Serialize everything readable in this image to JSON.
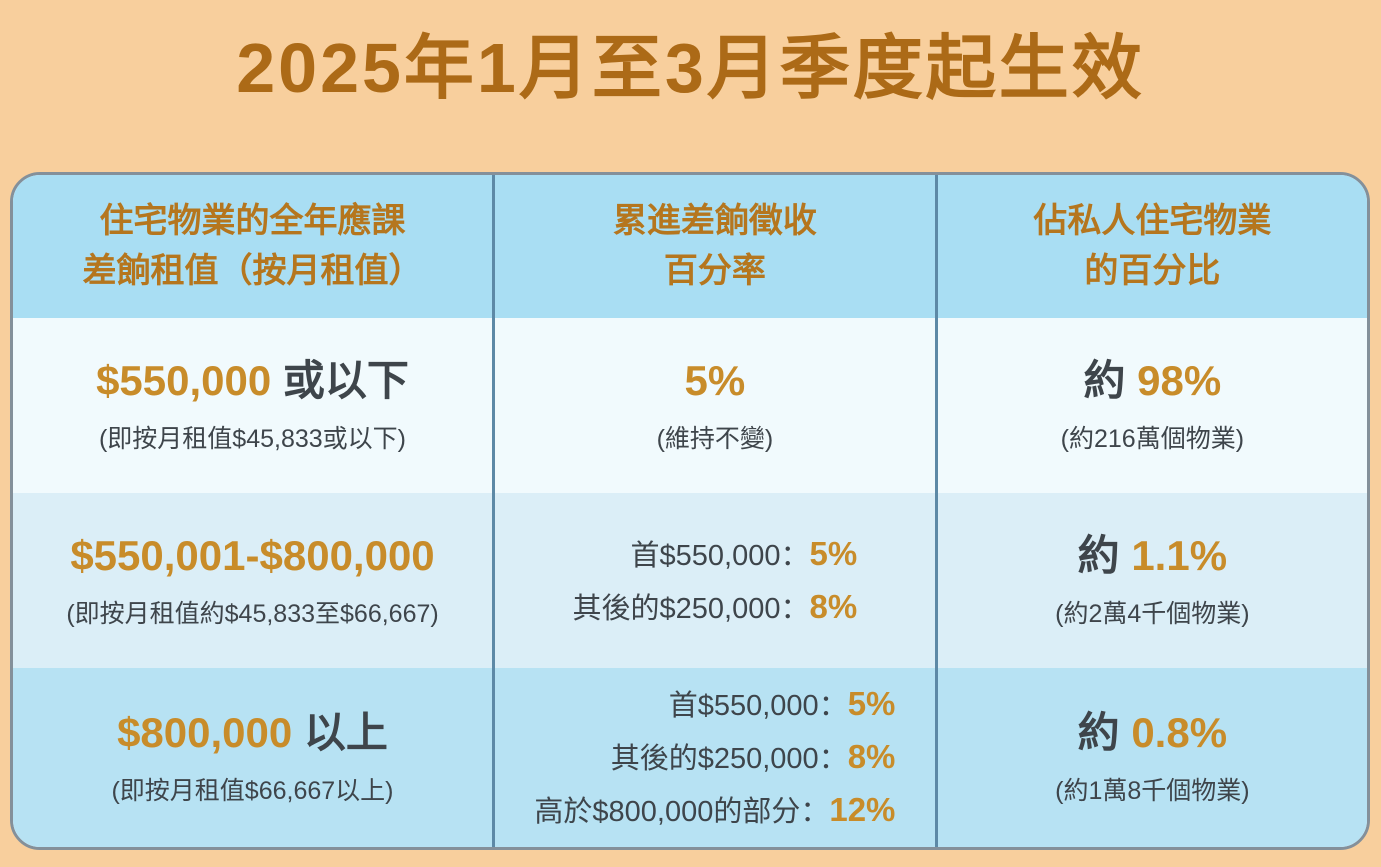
{
  "title": "2025年1月至3月季度起生效",
  "colors": {
    "page_bg": "#f8cf9d",
    "title_text": "#ac6a17",
    "header_text": "#b5761e",
    "highlight_orange": "#c88c2a",
    "body_text": "#3e454b",
    "header_row_bg": "#a9def3",
    "row1_bg": "#f1fafd",
    "row2_bg": "#dbeef7",
    "row3_bg": "#b7e2f3",
    "table_border": "#84909a",
    "column_divider": "#5d89a6"
  },
  "table": {
    "headers": [
      {
        "line1": "住宅物業的全年應課",
        "line2": "差餉租值（按月租值）"
      },
      {
        "line1": "累進差餉徵收",
        "line2": "百分率"
      },
      {
        "line1": "佔私人住宅物業",
        "line2": "的百分比"
      }
    ],
    "rows": [
      {
        "value_amount": "$550,000",
        "value_suffix": " 或以下",
        "value_note": "(即按月租值$45,833或以下)",
        "rate_value": "5%",
        "rate_note": "(維持不變)",
        "share_prefix": "約 ",
        "share_value": "98%",
        "share_note": "(約216萬個物業)"
      },
      {
        "value_amount": "$550,001-$800,000",
        "value_suffix": "",
        "value_note": "(即按月租值約$45,833至$66,667)",
        "rate_tiers": [
          {
            "label": "首$550,000：",
            "pct": "5%"
          },
          {
            "label": "其後的$250,000：",
            "pct": "8%"
          }
        ],
        "share_prefix": "約 ",
        "share_value": "1.1%",
        "share_note": "(約2萬4千個物業)"
      },
      {
        "value_amount": "$800,000",
        "value_suffix": " 以上",
        "value_note": "(即按月租值$66,667以上)",
        "rate_tiers": [
          {
            "label": "首$550,000：",
            "pct": "5%"
          },
          {
            "label": "其後的$250,000：",
            "pct": "8%"
          },
          {
            "label": "高於$800,000的部分：",
            "pct": "12%"
          }
        ],
        "share_prefix": "約 ",
        "share_value": "0.8%",
        "share_note": "(約1萬8千個物業)"
      }
    ]
  }
}
